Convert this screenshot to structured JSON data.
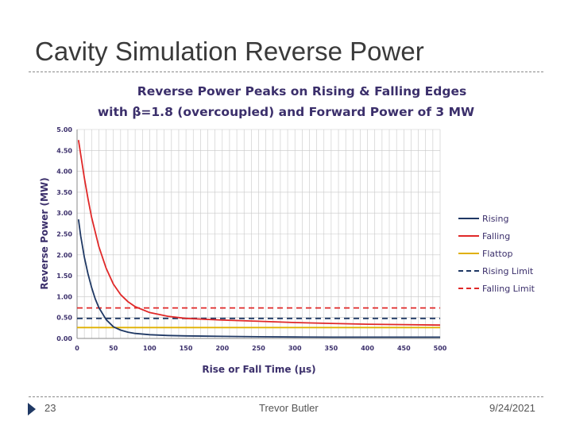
{
  "slide": {
    "title": "Cavity Simulation Reverse Power",
    "number": "23",
    "author": "Trevor Butler",
    "date": "9/24/2021"
  },
  "colors": {
    "title_text": "#3a3a3a",
    "chart_title": "#3b2f6b",
    "rising": "#1f3864",
    "falling": "#e02828",
    "flattop": "#e0b000",
    "grid": "#c8c8c8"
  },
  "chart_data": {
    "type": "line",
    "title_line1": "Reverse Power Peaks on Rising & Falling Edges",
    "title_line2": "with β=1.8 (overcoupled) and Forward Power of 3 MW",
    "xlabel": "Rise or Fall Time (μs)",
    "ylabel": "Reverse Power (MW)",
    "xlim": [
      0,
      500
    ],
    "ylim": [
      0,
      5
    ],
    "x_ticks": [
      "0",
      "50",
      "100",
      "150",
      "200",
      "250",
      "300",
      "350",
      "400",
      "450",
      "500"
    ],
    "y_ticks": [
      "0.00",
      "0.50",
      "1.00",
      "1.50",
      "2.00",
      "2.50",
      "3.00",
      "3.50",
      "4.00",
      "4.50",
      "5.00"
    ],
    "grid": true,
    "legend_position": "right",
    "series": [
      {
        "name": "Rising",
        "style": "solid",
        "color": "#1f3864",
        "x": [
          2,
          5,
          10,
          15,
          20,
          25,
          30,
          40,
          50,
          60,
          70,
          80,
          100,
          125,
          150,
          200,
          250,
          300,
          350,
          400,
          450,
          500
        ],
        "y": [
          2.85,
          2.45,
          1.95,
          1.55,
          1.22,
          0.95,
          0.74,
          0.45,
          0.28,
          0.2,
          0.15,
          0.12,
          0.09,
          0.07,
          0.06,
          0.05,
          0.04,
          0.035,
          0.03,
          0.03,
          0.03,
          0.03
        ]
      },
      {
        "name": "Falling",
        "style": "solid",
        "color": "#e02828",
        "x": [
          2,
          5,
          10,
          15,
          20,
          30,
          40,
          50,
          60,
          70,
          80,
          100,
          125,
          150,
          200,
          250,
          300,
          350,
          400,
          450,
          500
        ],
        "y": [
          4.75,
          4.4,
          3.85,
          3.35,
          2.9,
          2.2,
          1.68,
          1.3,
          1.05,
          0.88,
          0.76,
          0.62,
          0.53,
          0.48,
          0.44,
          0.41,
          0.38,
          0.36,
          0.34,
          0.33,
          0.32
        ]
      },
      {
        "name": "Flattop",
        "style": "solid",
        "color": "#e0b000",
        "x": [
          0,
          500
        ],
        "y": [
          0.26,
          0.26
        ]
      },
      {
        "name": "Rising Limit",
        "style": "dashed",
        "color": "#1f3864",
        "x": [
          0,
          500
        ],
        "y": [
          0.48,
          0.48
        ]
      },
      {
        "name": "Falling Limit",
        "style": "dashed",
        "color": "#e02828",
        "x": [
          0,
          500
        ],
        "y": [
          0.73,
          0.73
        ]
      }
    ]
  }
}
